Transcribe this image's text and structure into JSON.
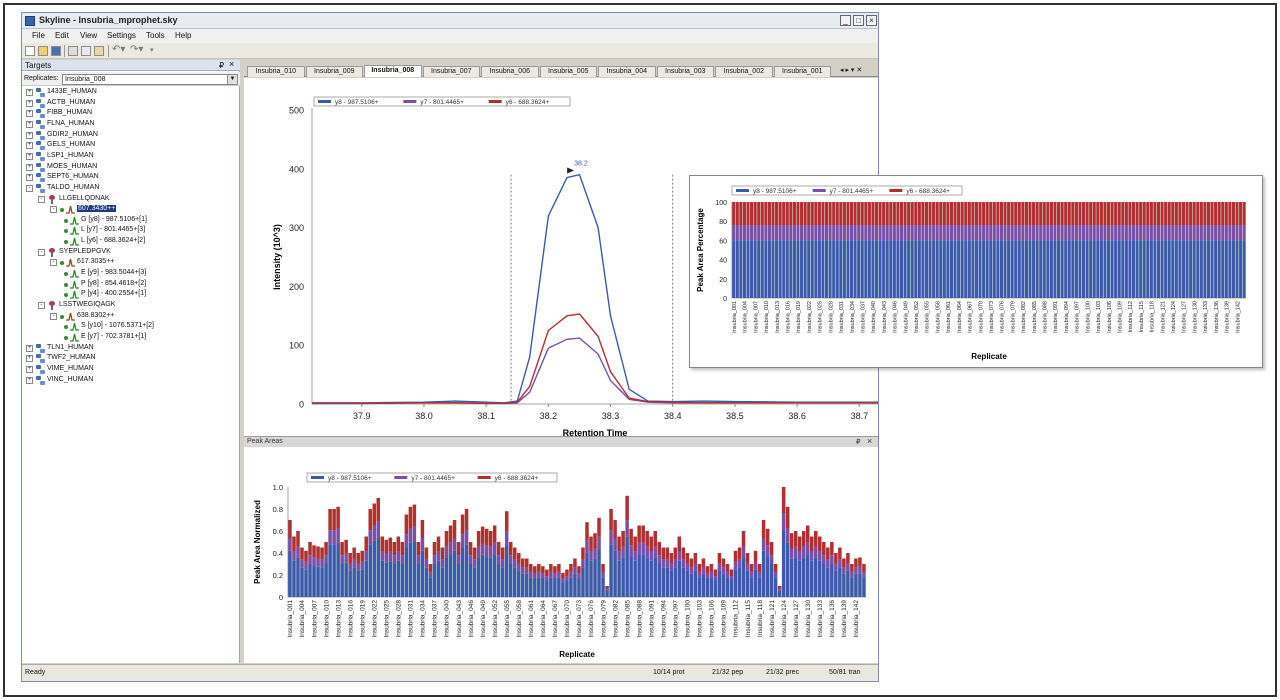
{
  "window": {
    "title": "Skyline - Insubria_mprophet.sky"
  },
  "window_controls": {
    "minimize": "_",
    "maximize": "□",
    "close": "×"
  },
  "menu": [
    "File",
    "Edit",
    "View",
    "Settings",
    "Tools",
    "Help"
  ],
  "targets": {
    "header": "Targets",
    "pin": "₽",
    "close": "×",
    "replicates_label": "Replicates:",
    "replicate_value": "Insubria_008",
    "tree": [
      {
        "type": "protein",
        "level": 0,
        "label": "1433E_HUMAN",
        "exp": "+"
      },
      {
        "type": "protein",
        "level": 0,
        "label": "ACTB_HUMAN",
        "exp": "+"
      },
      {
        "type": "protein",
        "level": 0,
        "label": "FIBB_HUMAN",
        "exp": "+"
      },
      {
        "type": "protein",
        "level": 0,
        "label": "FLNA_HUMAN",
        "exp": "+"
      },
      {
        "type": "protein",
        "level": 0,
        "label": "GDIR2_HUMAN",
        "exp": "+"
      },
      {
        "type": "protein",
        "level": 0,
        "label": "GELS_HUMAN",
        "exp": "+"
      },
      {
        "type": "protein",
        "level": 0,
        "label": "LSP1_HUMAN",
        "exp": "+"
      },
      {
        "type": "protein",
        "level": 0,
        "label": "MOES_HUMAN",
        "exp": "+"
      },
      {
        "type": "protein",
        "level": 0,
        "label": "SEPT6_HUMAN",
        "exp": "+"
      },
      {
        "type": "protein",
        "level": 0,
        "label": "TALDO_HUMAN",
        "exp": "-"
      },
      {
        "type": "peptide",
        "level": 1,
        "label": "LLGELLQDNAK",
        "exp": "-"
      },
      {
        "type": "precursor",
        "level": 2,
        "label": "607.3430++",
        "exp": "-",
        "selected": true
      },
      {
        "type": "transition",
        "level": 3,
        "label": "G [y8] - 987.5106+[1]"
      },
      {
        "type": "transition",
        "level": 3,
        "label": "L [y7] - 801.4465+[3]"
      },
      {
        "type": "transition",
        "level": 3,
        "label": "L [y6] - 688.3624+[2]"
      },
      {
        "type": "peptide",
        "level": 1,
        "label": "SYEPLEDPGVK",
        "exp": "-"
      },
      {
        "type": "precursor",
        "level": 2,
        "label": "617.3035++",
        "exp": "-"
      },
      {
        "type": "transition",
        "level": 3,
        "label": "E [y9] - 983.5044+[3]"
      },
      {
        "type": "transition",
        "level": 3,
        "label": "P [y8] - 854.4618+[2]"
      },
      {
        "type": "transition",
        "level": 3,
        "label": "P [y4] - 400.2554+[1]"
      },
      {
        "type": "peptide",
        "level": 1,
        "label": "LSSTWEGIQAGK",
        "exp": "-"
      },
      {
        "type": "precursor",
        "level": 2,
        "label": "638.8302++",
        "exp": "-"
      },
      {
        "type": "transition",
        "level": 3,
        "label": "S [y10] - 1076.5371+[2]"
      },
      {
        "type": "transition",
        "level": 3,
        "label": "E [y7] - 702.3781+[1]"
      },
      {
        "type": "protein",
        "level": 0,
        "label": "TLN1_HUMAN",
        "exp": "+"
      },
      {
        "type": "protein",
        "level": 0,
        "label": "TWF2_HUMAN",
        "exp": "+"
      },
      {
        "type": "protein",
        "level": 0,
        "label": "VIME_HUMAN",
        "exp": "+"
      },
      {
        "type": "protein",
        "level": 0,
        "label": "VINC_HUMAN",
        "exp": "+"
      }
    ]
  },
  "tabs": {
    "items": [
      "Insubria_010",
      "Insubria_009",
      "Insubria_008",
      "Insubria_007",
      "Insubria_006",
      "Insubria_005",
      "Insubria_004",
      "Insubria_003",
      "Insubria_002",
      "Insubria_001"
    ],
    "active": "Insubria_008",
    "nav": "◂ ▸ ▾ ✕"
  },
  "peak_areas_panel": {
    "title": "Peak Areas",
    "pin": "₽",
    "close": "×"
  },
  "status": {
    "ready": "Ready",
    "prot": "10/14 prot",
    "pep": "21/32 pep",
    "prec": "21/32 prec",
    "tran": "50/81 tran"
  },
  "colors": {
    "y8": "#3b5ba9",
    "y7": "#7b4fa6",
    "y6": "#b03030"
  },
  "chart_data": [
    {
      "type": "line",
      "name": "chromatogram",
      "legend": [
        "y8 - 987.5106+",
        "y7 - 801.4465+",
        "y6 - 688.3624+"
      ],
      "xlabel": "Retention Time",
      "ylabel": "Intensity (10^3)",
      "xlim": [
        37.82,
        38.73
      ],
      "ylim": [
        0,
        500
      ],
      "xticks": [
        "37.9",
        "38.0",
        "38.1",
        "38.2",
        "38.3",
        "38.4",
        "38.5",
        "38.6",
        "38.7"
      ],
      "yticks": [
        "0",
        "100",
        "200",
        "300",
        "400",
        "500"
      ],
      "peak_label": "38.2",
      "integration_bounds": [
        38.14,
        38.4
      ],
      "x": [
        37.82,
        37.9,
        38.0,
        38.05,
        38.1,
        38.13,
        38.15,
        38.17,
        38.2,
        38.23,
        38.25,
        38.28,
        38.3,
        38.33,
        38.36,
        38.4,
        38.45,
        38.5,
        38.6,
        38.7,
        38.73
      ],
      "series": [
        {
          "name": "y8 - 987.5106+",
          "values": [
            2,
            2,
            3,
            5,
            3,
            2,
            5,
            80,
            320,
            385,
            390,
            300,
            150,
            25,
            5,
            4,
            5,
            4,
            3,
            3,
            3
          ]
        },
        {
          "name": "y7 - 801.4465+",
          "values": [
            1,
            1,
            2,
            2,
            2,
            1,
            2,
            20,
            95,
            110,
            112,
            85,
            40,
            8,
            3,
            2,
            2,
            2,
            2,
            2,
            2
          ]
        },
        {
          "name": "y6 - 688.3624+",
          "values": [
            1,
            1,
            2,
            2,
            1,
            1,
            3,
            30,
            125,
            150,
            153,
            115,
            55,
            10,
            4,
            3,
            2,
            2,
            2,
            2,
            2
          ]
        }
      ]
    },
    {
      "type": "bar",
      "name": "peak_area_percentage",
      "legend": [
        "y8 - 987.5106+",
        "y7 - 801.4465+",
        "y6 - 688.3624+"
      ],
      "xlabel": "Replicate",
      "ylabel": "Peak Area Percentage",
      "ylim": [
        0,
        100
      ],
      "yticks": [
        "0",
        "20",
        "40",
        "60",
        "80",
        "100"
      ],
      "stack_fractions": [
        0.6,
        0.16,
        0.24
      ],
      "count": 144,
      "tick_every": 3,
      "category_prefix": "Insubria_"
    },
    {
      "type": "bar",
      "name": "peak_area_normalized",
      "legend": [
        "y8 - 987.5106+",
        "y7 - 801.4465+",
        "y6 - 688.3624+"
      ],
      "xlabel": "Replicate",
      "ylabel": "Peak Area Normalized",
      "ylim": [
        0,
        1.0
      ],
      "yticks": [
        "0",
        "0.2",
        "0.4",
        "0.6",
        "0.8",
        "1.0"
      ],
      "stack_fractions": [
        0.6,
        0.16,
        0.24
      ],
      "count": 144,
      "tick_every": 3,
      "category_prefix": "Insubria_",
      "totals": [
        0.7,
        0.55,
        0.6,
        0.45,
        0.42,
        0.5,
        0.47,
        0.46,
        0.45,
        0.5,
        0.8,
        0.8,
        0.82,
        0.5,
        0.52,
        0.4,
        0.45,
        0.4,
        0.42,
        0.55,
        0.8,
        0.85,
        0.9,
        0.55,
        0.52,
        0.54,
        0.5,
        0.55,
        0.5,
        0.75,
        0.82,
        0.84,
        0.5,
        0.7,
        0.45,
        0.3,
        0.5,
        0.55,
        0.45,
        0.6,
        0.65,
        0.7,
        0.5,
        0.75,
        0.8,
        0.5,
        0.45,
        0.6,
        0.64,
        0.62,
        0.6,
        0.65,
        0.5,
        0.45,
        0.78,
        0.5,
        0.45,
        0.4,
        0.35,
        0.35,
        0.3,
        0.28,
        0.3,
        0.28,
        0.25,
        0.3,
        0.28,
        0.3,
        0.22,
        0.25,
        0.3,
        0.35,
        0.28,
        0.45,
        0.68,
        0.55,
        0.58,
        0.72,
        0.3,
        0.1,
        0.8,
        0.7,
        0.55,
        0.6,
        0.92,
        0.62,
        0.55,
        0.65,
        0.65,
        0.6,
        0.55,
        0.6,
        0.5,
        0.45,
        0.45,
        0.4,
        0.45,
        0.55,
        0.45,
        0.4,
        0.35,
        0.4,
        0.3,
        0.35,
        0.28,
        0.3,
        0.25,
        0.4,
        0.35,
        0.3,
        0.25,
        0.42,
        0.45,
        0.6,
        0.4,
        0.3,
        0.42,
        0.3,
        0.7,
        0.62,
        0.5,
        0.3,
        0.1,
        1.0,
        0.82,
        0.58,
        0.6,
        0.55,
        0.6,
        0.65,
        0.55,
        0.6,
        0.55,
        0.5,
        0.45,
        0.5,
        0.4,
        0.45,
        0.35,
        0.4,
        0.3,
        0.35,
        0.36,
        0.3
      ]
    }
  ]
}
